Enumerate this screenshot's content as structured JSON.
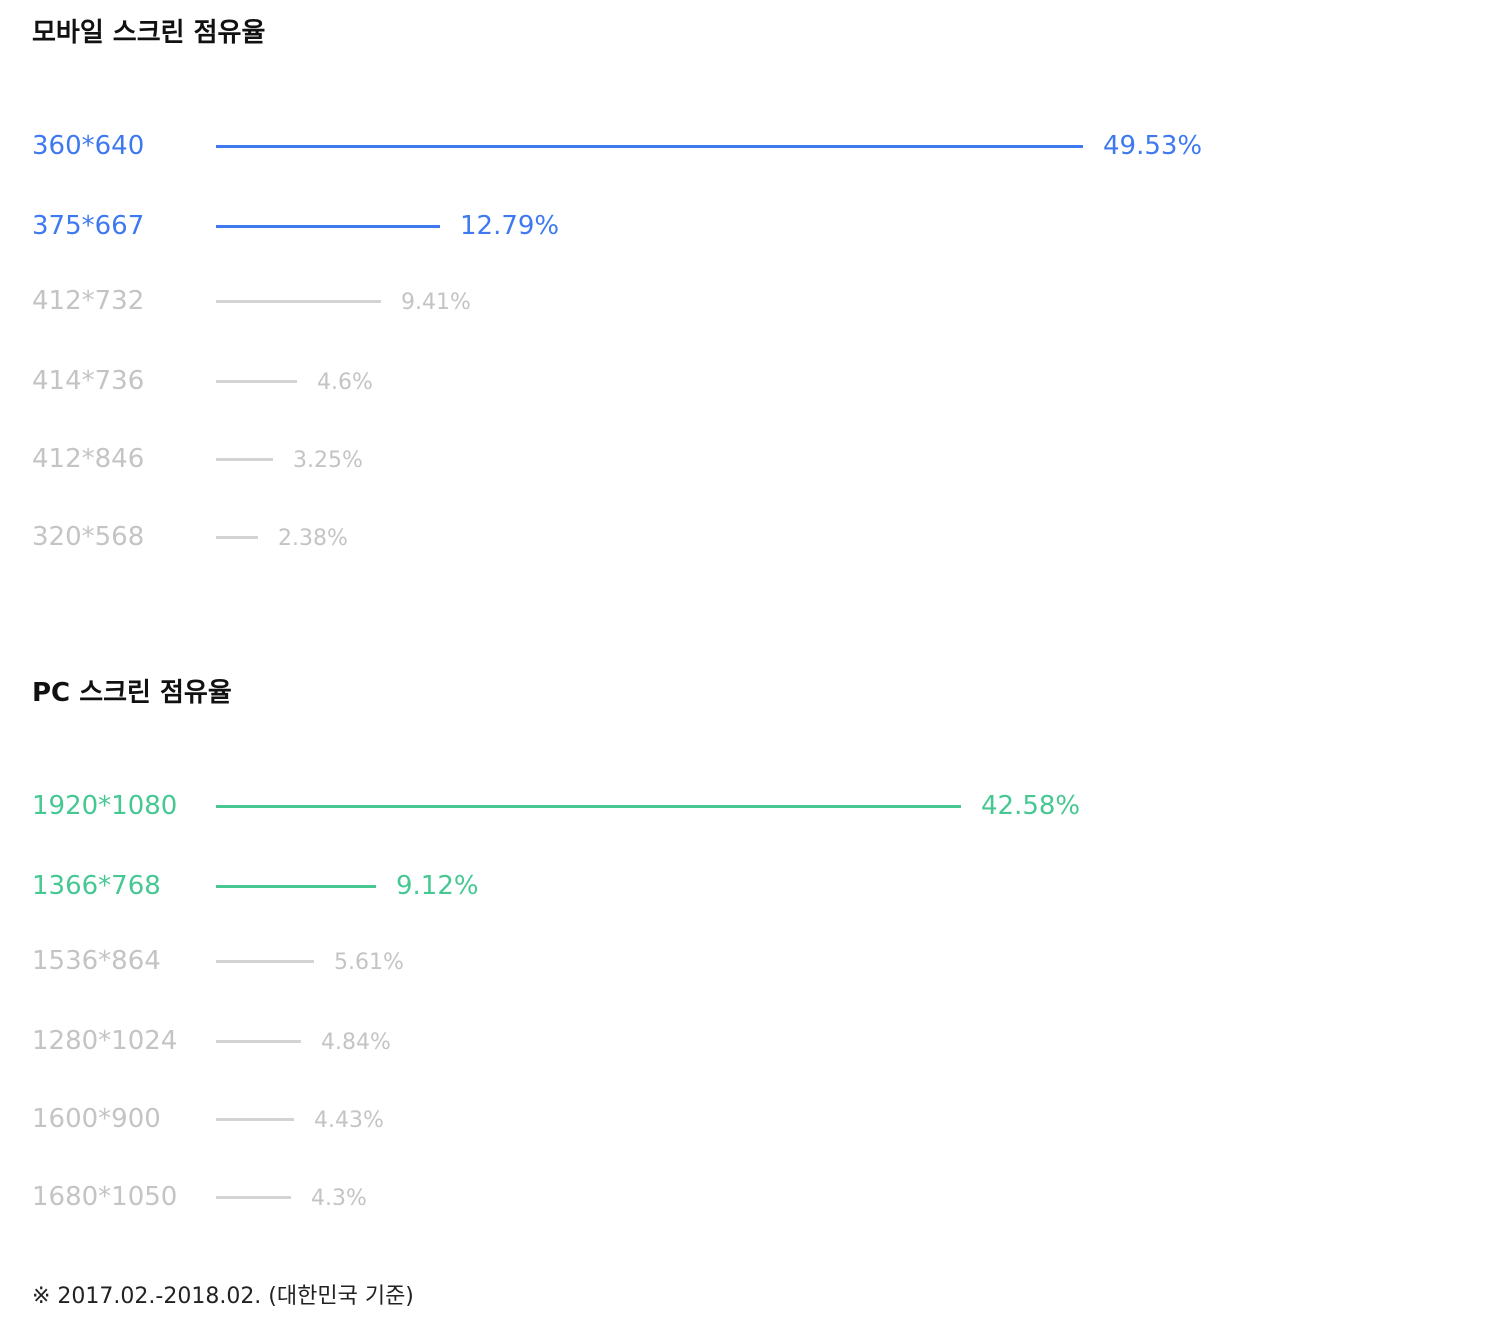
{
  "chart_data": [
    {
      "type": "bar",
      "title": "모바일 스크린 점유율",
      "categories": [
        "360*640",
        "375*667",
        "412*732",
        "414*736",
        "412*846",
        "320*568"
      ],
      "values": [
        49.53,
        12.79,
        9.41,
        4.6,
        3.25,
        2.38
      ],
      "value_labels": [
        "49.53%",
        "12.79%",
        "9.41%",
        "4.6%",
        "3.25%",
        "2.38%"
      ],
      "highlighted": [
        true,
        true,
        false,
        false,
        false,
        false
      ],
      "colors": {
        "highlight": "#3f79f0",
        "muted_bar": "#d3d3d3",
        "muted_text": "#c4c4c4"
      },
      "grid": false
    },
    {
      "type": "bar",
      "title": "PC 스크린 점유율",
      "categories": [
        "1920*1080",
        "1366*768",
        "1536*864",
        "1280*1024",
        "1600*900",
        "1680*1050"
      ],
      "values": [
        42.58,
        9.12,
        5.61,
        4.84,
        4.43,
        4.3
      ],
      "value_labels": [
        "42.58%",
        "9.12%",
        "5.61%",
        "4.84%",
        "4.43%",
        "4.3%"
      ],
      "highlighted": [
        true,
        true,
        false,
        false,
        false,
        false
      ],
      "colors": {
        "highlight": "#47c893",
        "muted_bar": "#d3d3d3",
        "muted_text": "#c4c4c4"
      },
      "grid": false
    }
  ],
  "footnote": "※ 2017.02.-2018.02. (대한민국 기준)"
}
